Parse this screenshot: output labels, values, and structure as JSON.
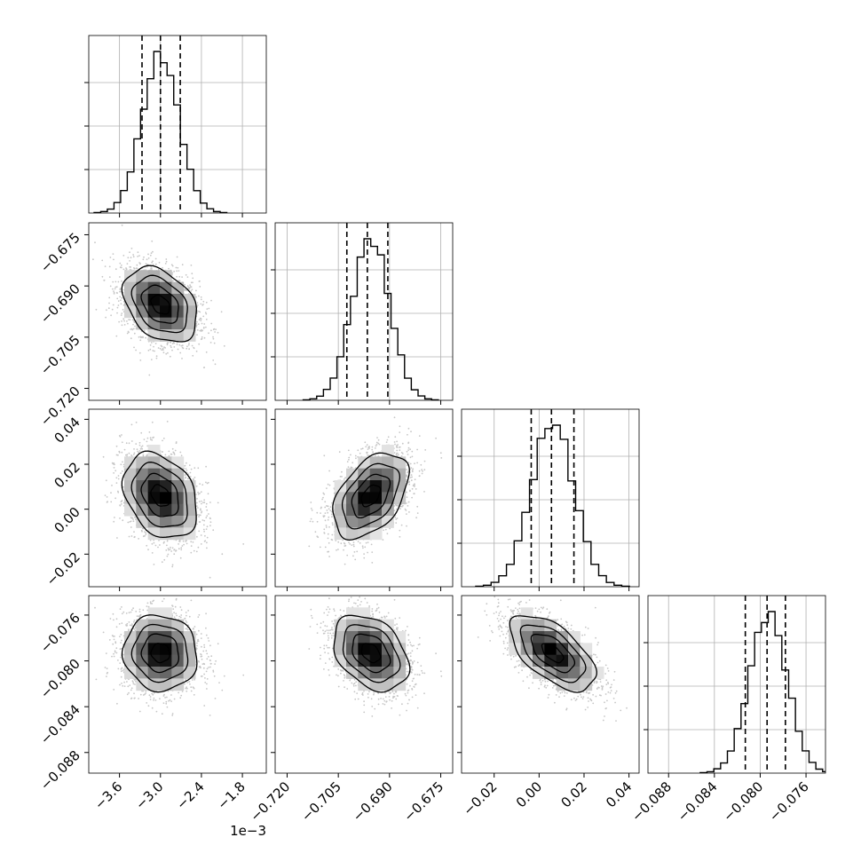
{
  "chart_data": {
    "type": "corner",
    "parameters": [
      {
        "ticks": [
          -3.6,
          -3.0,
          -2.4,
          -1.8
        ],
        "tick_labels": [
          "−3.6",
          "−3.0",
          "−2.4",
          "−1.8"
        ],
        "range": [
          -4.05,
          -1.45
        ],
        "mean": -3.0,
        "sd": 0.27,
        "quantiles": [
          -3.27,
          -3.0,
          -2.71
        ],
        "offset_text": "1e−3"
      },
      {
        "ticks": [
          -0.72,
          -0.705,
          -0.69,
          -0.675
        ],
        "tick_labels": [
          "−0.720",
          "−0.705",
          "−0.690",
          "−0.675"
        ],
        "range": [
          -0.7235,
          -0.6715
        ],
        "mean": -0.6955,
        "sd": 0.0055,
        "quantiles": [
          -0.7025,
          -0.6965,
          -0.6905
        ]
      },
      {
        "ticks": [
          -0.02,
          0.0,
          0.02,
          0.04
        ],
        "tick_labels": [
          "−0.02",
          "0.00",
          "0.02",
          "0.04"
        ],
        "range": [
          -0.0345,
          0.0445
        ],
        "mean": 0.006,
        "sd": 0.0095,
        "quantiles": [
          -0.0035,
          0.0055,
          0.0155
        ]
      },
      {
        "ticks": [
          -0.088,
          -0.084,
          -0.08,
          -0.076
        ],
        "tick_labels": [
          "−0.088",
          "−0.084",
          "−0.080",
          "−0.076"
        ],
        "range": [
          -0.0898,
          -0.0743
        ],
        "mean": -0.0793,
        "sd": 0.00165,
        "quantiles": [
          -0.0813,
          -0.0794,
          -0.0778
        ]
      }
    ],
    "hist_density_ticks": [
      0.25,
      0.5,
      0.75
    ],
    "contour_levels_sigma": [
      0.5,
      1.0,
      1.5,
      2.0
    ],
    "correlations": [
      {
        "pair": [
          1,
          0
        ],
        "rho": -0.35
      },
      {
        "pair": [
          2,
          0
        ],
        "rho": -0.3
      },
      {
        "pair": [
          2,
          1
        ],
        "rho": 0.45
      },
      {
        "pair": [
          3,
          0
        ],
        "rho": -0.05
      },
      {
        "pair": [
          3,
          1
        ],
        "rho": -0.35
      },
      {
        "pair": [
          3,
          2
        ],
        "rho": -0.6
      }
    ],
    "histogram_bins": 20,
    "grid": true,
    "colors": {
      "line": "#000000",
      "grid": "#b0b0b0",
      "points": "#999999",
      "background": "#ffffff"
    }
  }
}
